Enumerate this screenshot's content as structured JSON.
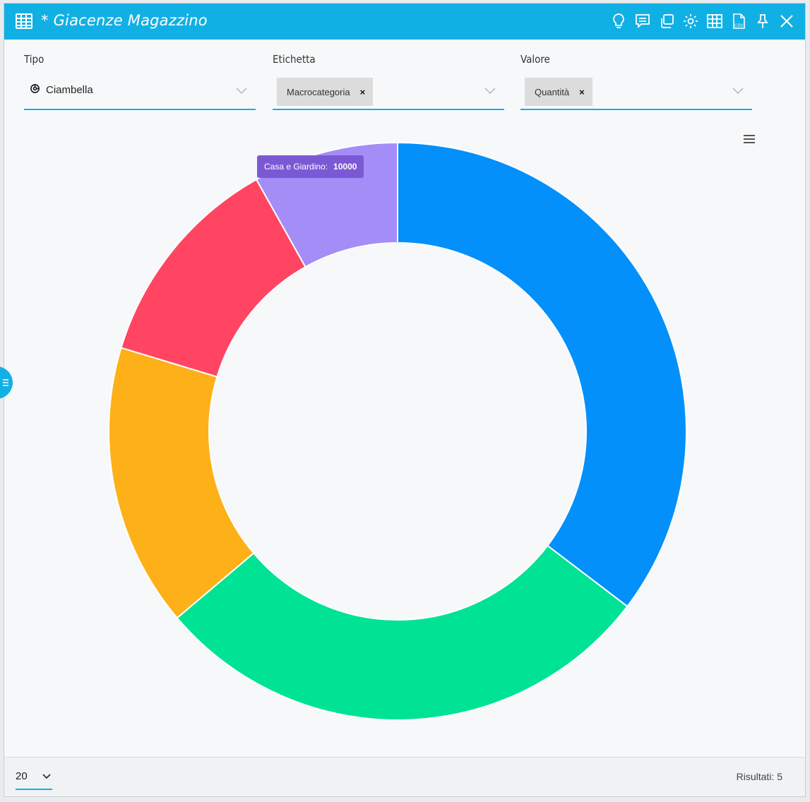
{
  "window": {
    "title": "* Giacenze Magazzino"
  },
  "toolbar": {
    "icons": [
      "lightbulb-icon",
      "comment-icon",
      "copy-icon",
      "gear-icon",
      "table-icon",
      "csv-icon",
      "pin-icon",
      "close-icon"
    ]
  },
  "filters": {
    "tipo": {
      "label": "Tipo",
      "value": "Ciambella",
      "icon": "donut-chart-icon"
    },
    "etichetta": {
      "label": "Etichetta",
      "chip": "Macrocategoria",
      "remove": "×"
    },
    "valore": {
      "label": "Valore",
      "chip": "Quantità",
      "remove": "×"
    }
  },
  "tooltip": {
    "label": "Casa e Giardino:",
    "value": "10000"
  },
  "footer": {
    "page_size": "20",
    "results": "Risultati: 5"
  },
  "colors": {
    "accent": "#11b0e4",
    "series": [
      "#0390fb",
      "#00e395",
      "#feb019",
      "#ff4561",
      "#a58df7"
    ]
  },
  "chart_data": {
    "type": "pie",
    "variant": "donut",
    "categories": [
      "",
      "",
      "",
      "",
      "Casa e Giardino"
    ],
    "values": [
      43500,
      35000,
      19500,
      15000,
      10000
    ],
    "colors": [
      "#0390fb",
      "#00e395",
      "#feb019",
      "#ff4561",
      "#a58df7"
    ],
    "legend": "none",
    "title": ""
  }
}
